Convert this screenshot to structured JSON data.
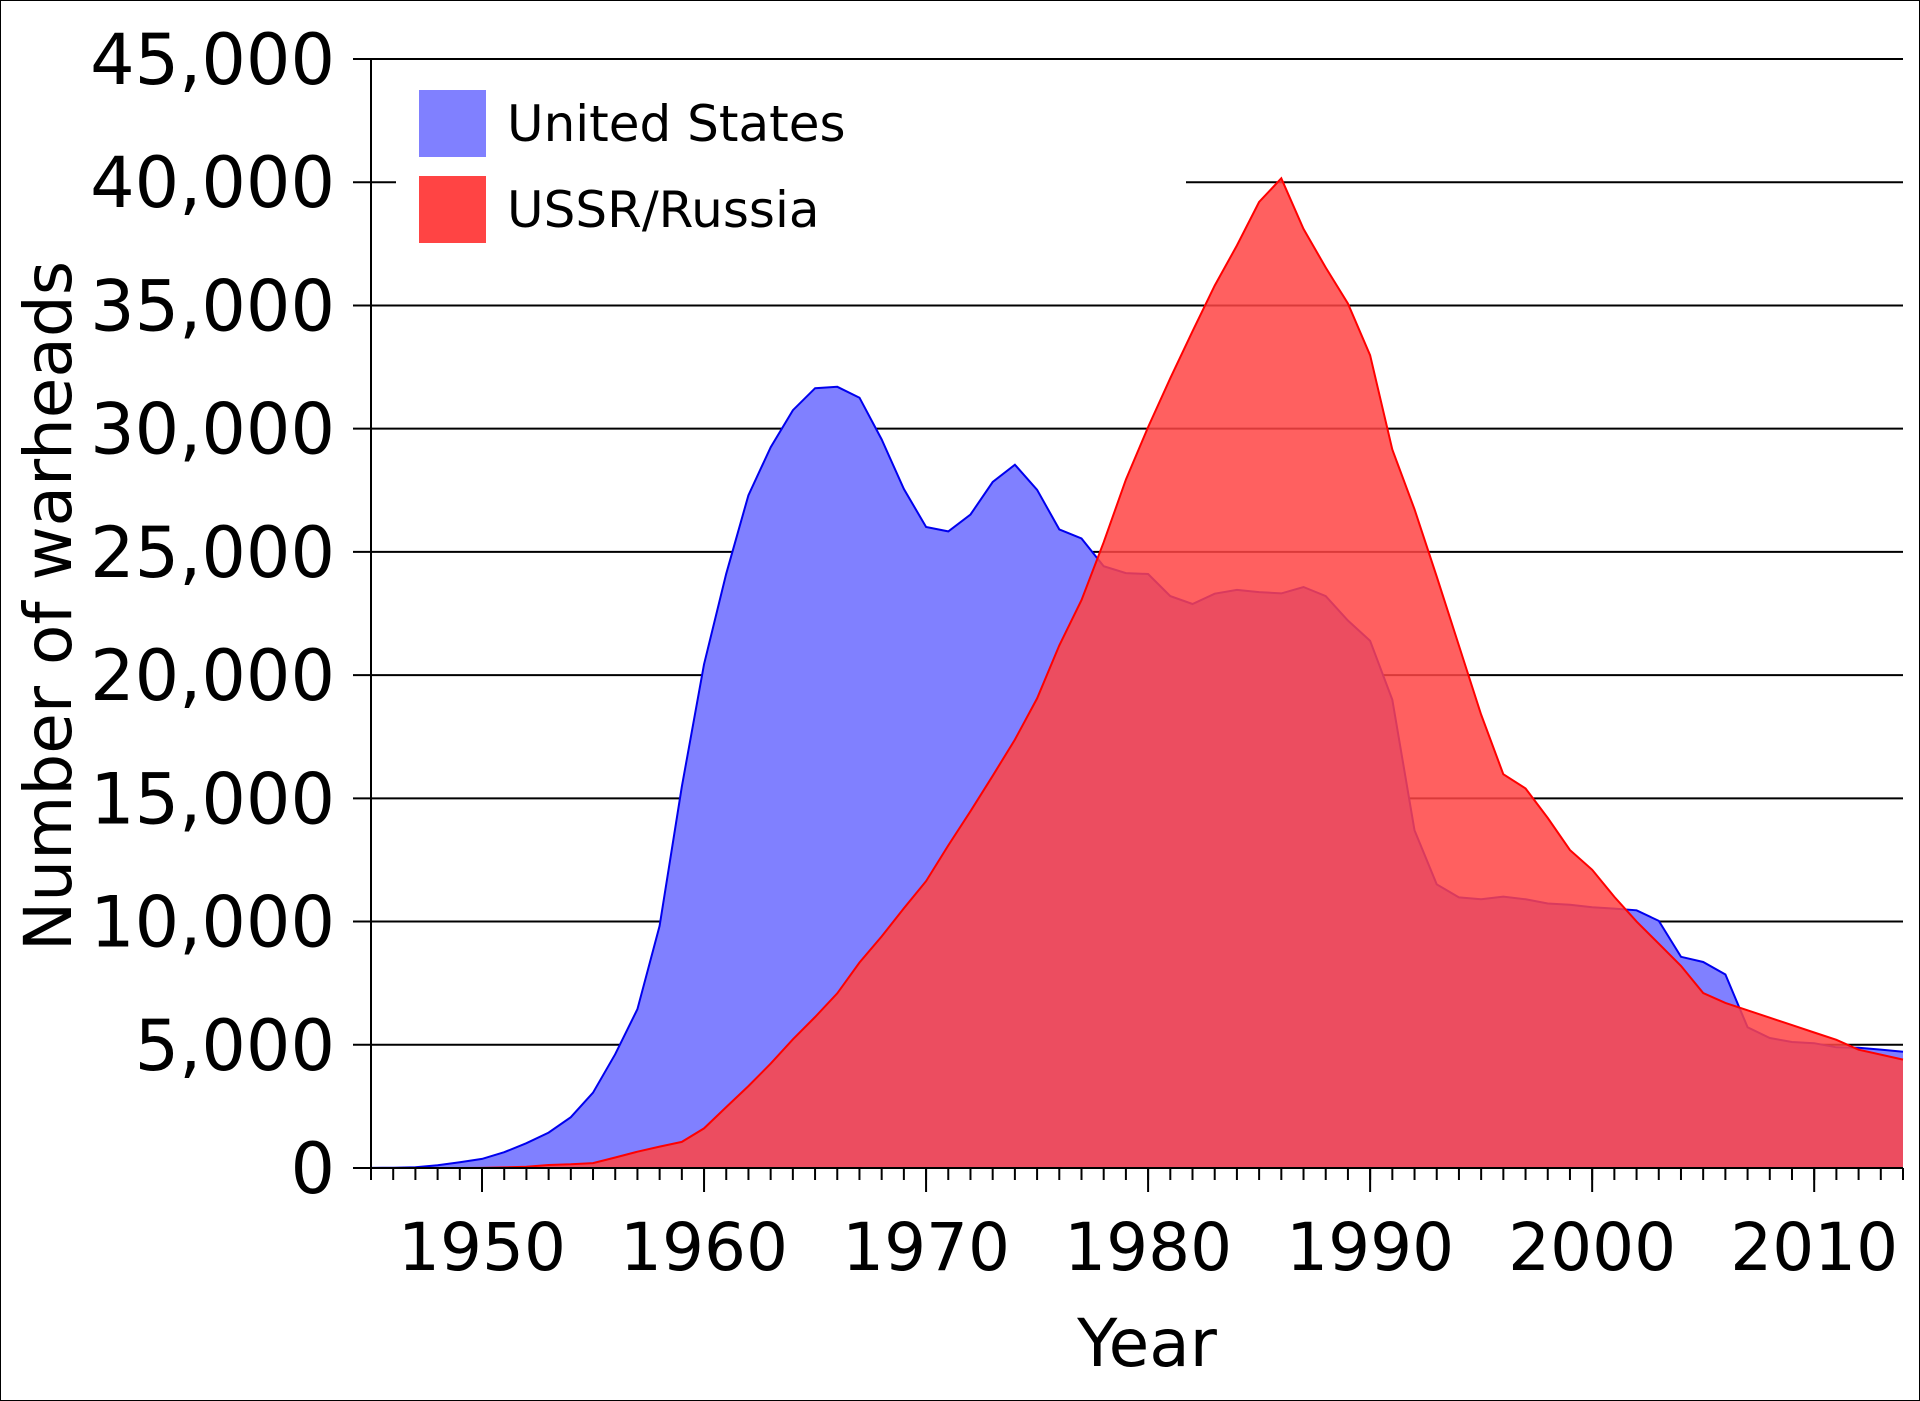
{
  "chart_data": {
    "type": "area",
    "title": "",
    "xlabel": "Year",
    "ylabel": "Number of warheads",
    "xlim": [
      1945,
      2014
    ],
    "ylim": [
      0,
      45000
    ],
    "grid": true,
    "legend_position": "top-left",
    "x_ticks": [
      1950,
      1960,
      1970,
      1980,
      1990,
      2000,
      2010
    ],
    "x_tick_labels": [
      "1950",
      "1960",
      "1970",
      "1980",
      "1990",
      "2000",
      "2010"
    ],
    "y_ticks": [
      0,
      5000,
      10000,
      15000,
      20000,
      25000,
      30000,
      35000,
      40000,
      45000
    ],
    "y_tick_labels": [
      "0",
      "5,000",
      "10,000",
      "15,000",
      "20,000",
      "25,000",
      "30,000",
      "35,000",
      "40,000",
      "45,000"
    ],
    "x": [
      1945,
      1946,
      1947,
      1948,
      1949,
      1950,
      1951,
      1952,
      1953,
      1954,
      1955,
      1956,
      1957,
      1958,
      1959,
      1960,
      1961,
      1962,
      1963,
      1964,
      1965,
      1966,
      1967,
      1968,
      1969,
      1970,
      1971,
      1972,
      1973,
      1974,
      1975,
      1976,
      1977,
      1978,
      1979,
      1980,
      1981,
      1982,
      1983,
      1984,
      1985,
      1986,
      1987,
      1988,
      1989,
      1990,
      1991,
      1992,
      1993,
      1994,
      1995,
      1996,
      1997,
      1998,
      1999,
      2000,
      2001,
      2002,
      2003,
      2004,
      2005,
      2006,
      2007,
      2008,
      2009,
      2010,
      2011,
      2012,
      2013,
      2014
    ],
    "series": [
      {
        "name": "United States",
        "color": "#8080ff",
        "line_color": "#0000ee",
        "values": [
          6,
          11,
          32,
          110,
          235,
          369,
          640,
          1005,
          1436,
          2063,
          3057,
          4618,
          6444,
          9822,
          15468,
          20434,
          24111,
          27297,
          29249,
          30751,
          31642,
          31700,
          31255,
          29561,
          27552,
          26008,
          25830,
          26516,
          27835,
          28537,
          27519,
          25914,
          25542,
          24418,
          24138,
          24104,
          23208,
          22886,
          23305,
          23459,
          23368,
          23317,
          23575,
          23205,
          22217,
          21392,
          19008,
          13708,
          11511,
          10979,
          10904,
          11011,
          10903,
          10732,
          10685,
          10577,
          10526,
          10457,
          10027,
          8570,
          8360,
          7853,
          5709,
          5273,
          5113,
          5066,
          4897,
          4881,
          4804,
          4717
        ]
      },
      {
        "name": "USSR/Russia",
        "color": "#ff4444",
        "line_color": "#ff0000",
        "values": [
          0,
          0,
          0,
          0,
          1,
          5,
          25,
          50,
          120,
          150,
          200,
          426,
          660,
          869,
          1060,
          1605,
          2471,
          3322,
          4238,
          5221,
          6129,
          7089,
          8339,
          9399,
          10538,
          11643,
          13092,
          14478,
          15915,
          17385,
          19055,
          21205,
          23044,
          25393,
          27935,
          30062,
          32049,
          33952,
          35804,
          37431,
          39197,
          40159,
          38107,
          36538,
          35078,
          32980,
          29154,
          26734,
          24000,
          21200,
          18400,
          15978,
          15400,
          14200,
          12900,
          12100,
          11000,
          10000,
          9100,
          8200,
          7100,
          6700,
          6400,
          6100,
          5800,
          5500,
          5200,
          4800,
          4600,
          4400
        ]
      }
    ]
  }
}
